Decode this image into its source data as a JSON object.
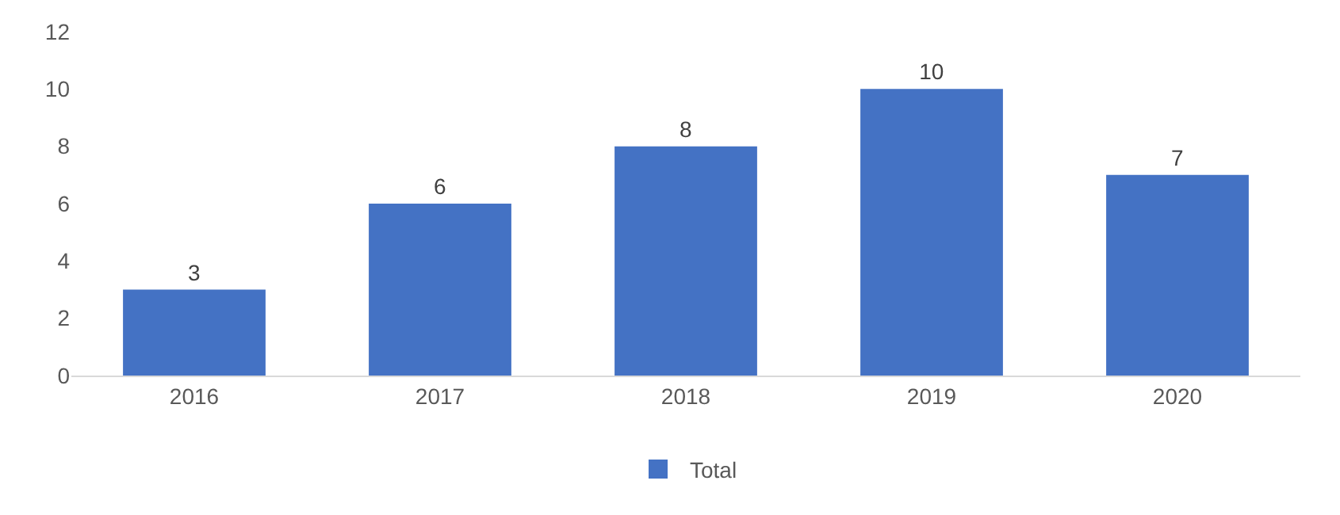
{
  "chart_data": {
    "type": "bar",
    "categories": [
      "2016",
      "2017",
      "2018",
      "2019",
      "2020"
    ],
    "series": [
      {
        "name": "Total",
        "color": "#4472c4",
        "values": [
          3,
          6,
          8,
          10,
          7
        ]
      }
    ],
    "ylim": [
      0,
      12
    ],
    "yticks": [
      0,
      2,
      4,
      6,
      8,
      10,
      12
    ],
    "legend": "bottom",
    "data_labels": true
  }
}
